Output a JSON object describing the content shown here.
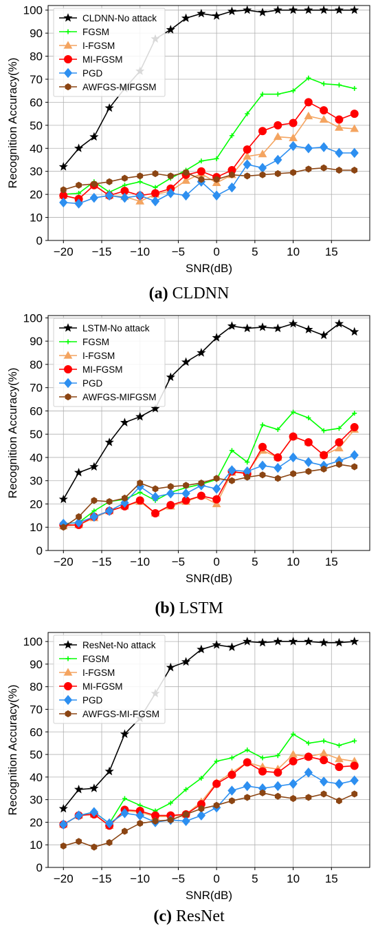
{
  "figure": {
    "panels": [
      {
        "caption_letter": "(a)",
        "caption_text": "CLDNN"
      },
      {
        "caption_letter": "(b)",
        "caption_text": "LSTM"
      },
      {
        "caption_letter": "(c)",
        "caption_text": "ResNet"
      }
    ]
  },
  "chart_data": [
    {
      "type": "line",
      "xlabel": "SNR(dB)",
      "ylabel": "Recognition Accuracy(%)",
      "xlim": [
        -22,
        20
      ],
      "ylim": [
        0,
        102
      ],
      "xticks": [
        -20,
        -15,
        -10,
        -5,
        0,
        5,
        10,
        15
      ],
      "yticks": [
        0,
        10,
        20,
        30,
        40,
        50,
        60,
        70,
        80,
        90,
        100
      ],
      "grid": true,
      "legend_position": "top-left",
      "x": [
        -20,
        -18,
        -16,
        -14,
        -12,
        -10,
        -8,
        -6,
        -4,
        -2,
        0,
        2,
        4,
        6,
        8,
        10,
        12,
        14,
        16,
        18
      ],
      "series": [
        {
          "name": "CLDNN-No attack",
          "color": "#000000",
          "marker": "star",
          "values": [
            32,
            40,
            45,
            57.5,
            66,
            73.5,
            87.5,
            91.5,
            96.5,
            98.5,
            97.5,
            99.5,
            100,
            99,
            100,
            100,
            100,
            100,
            100,
            100
          ]
        },
        {
          "name": "FGSM",
          "color": "#00ff00",
          "marker": "plus",
          "values": [
            20,
            20.5,
            25.5,
            21,
            24,
            25.5,
            23,
            27,
            30.5,
            34.5,
            35.5,
            45.5,
            55,
            63.5,
            63.5,
            65,
            70.5,
            68,
            67.5,
            66
          ]
        },
        {
          "name": "I-FGSM",
          "color": "#f4a460",
          "marker": "triangle",
          "values": [
            19.5,
            18,
            24,
            19.5,
            19,
            17,
            20,
            21.5,
            26,
            29,
            25,
            28.5,
            36.5,
            37.5,
            45,
            44.5,
            54,
            52.5,
            49,
            48.5
          ]
        },
        {
          "name": "MI-FGSM",
          "color": "#ff0000",
          "marker": "circle",
          "values": [
            19.5,
            18,
            24,
            19.5,
            21.5,
            19.5,
            20.5,
            22.5,
            28.5,
            30,
            27.5,
            30.5,
            39.5,
            47.5,
            50,
            51,
            60,
            56.5,
            52.5,
            55
          ]
        },
        {
          "name": "PGD",
          "color": "#2d8ff0",
          "marker": "diamond",
          "values": [
            16.5,
            16,
            18.5,
            19.5,
            18.5,
            19.5,
            17,
            20.5,
            19.5,
            25.5,
            19.5,
            23,
            33,
            31.5,
            35,
            41,
            40,
            40.5,
            38,
            38
          ]
        },
        {
          "name": "AWFGS-MIFGSM",
          "color": "#8b4513",
          "marker": "hexagon",
          "values": [
            22,
            24,
            24.5,
            25.5,
            27,
            28,
            29,
            28,
            29.5,
            26.5,
            26.5,
            28.5,
            28,
            28.5,
            29,
            29.5,
            31,
            31.5,
            30.5,
            30.5
          ]
        }
      ]
    },
    {
      "type": "line",
      "xlabel": "SNR(dB)",
      "ylabel": "Recognition Accuracy(%)",
      "xlim": [
        -22,
        20
      ],
      "ylim": [
        0,
        101
      ],
      "xticks": [
        -20,
        -15,
        -10,
        -5,
        0,
        5,
        10,
        15
      ],
      "yticks": [
        0,
        10,
        20,
        30,
        40,
        50,
        60,
        70,
        80,
        90,
        100
      ],
      "grid": true,
      "legend_position": "top-left",
      "x": [
        -20,
        -18,
        -16,
        -14,
        -12,
        -10,
        -8,
        -6,
        -4,
        -2,
        0,
        2,
        4,
        6,
        8,
        10,
        12,
        14,
        16,
        18
      ],
      "series": [
        {
          "name": "LSTM-No attack",
          "color": "#000000",
          "marker": "star",
          "values": [
            22,
            33.5,
            36,
            46.5,
            55,
            57.5,
            61,
            74.5,
            81,
            85,
            91.5,
            96.5,
            95.5,
            96,
            95.5,
            97.5,
            95,
            92.5,
            97.5,
            94
          ]
        },
        {
          "name": "FGSM",
          "color": "#00ff00",
          "marker": "plus",
          "values": [
            11.5,
            12,
            17,
            21,
            22,
            25,
            21.5,
            25,
            27,
            28.5,
            30.5,
            43,
            38,
            54,
            52,
            59.5,
            57,
            51.5,
            52.5,
            59
          ]
        },
        {
          "name": "I-FGSM",
          "color": "#f4a460",
          "marker": "triangle",
          "values": [
            10.5,
            11,
            14,
            17,
            19,
            21,
            16,
            19,
            21,
            23.5,
            20,
            33.5,
            33.5,
            43,
            40,
            49,
            46.5,
            41,
            44,
            52
          ]
        },
        {
          "name": "MI-FGSM",
          "color": "#ff0000",
          "marker": "circle",
          "values": [
            11,
            11,
            14.5,
            17,
            19,
            21.5,
            16,
            19.5,
            21.5,
            23.5,
            22,
            34,
            33,
            44.5,
            40,
            49,
            46.5,
            41,
            46.5,
            53
          ]
        },
        {
          "name": "PGD",
          "color": "#2d8ff0",
          "marker": "diamond",
          "values": [
            11.5,
            12,
            14.5,
            17,
            20.5,
            27.5,
            23,
            24.5,
            24.5,
            28,
            26.5,
            34.5,
            34,
            36.5,
            35.5,
            40,
            38,
            36.5,
            38.5,
            41
          ]
        },
        {
          "name": "AWFGS-MIFGSM",
          "color": "#8b4513",
          "marker": "hexagon",
          "values": [
            10,
            14.5,
            21.5,
            21,
            22.5,
            29,
            26.5,
            27.5,
            28,
            29,
            31,
            30,
            31.5,
            32.5,
            31,
            33,
            34,
            35,
            37,
            36
          ]
        }
      ]
    },
    {
      "type": "line",
      "xlabel": "SNR(dB)",
      "ylabel": "Recognition Accuracy(%)",
      "xlim": [
        -22,
        20
      ],
      "ylim": [
        0,
        104
      ],
      "xticks": [
        -20,
        -15,
        -10,
        -5,
        0,
        5,
        10,
        15
      ],
      "yticks": [
        0,
        10,
        20,
        30,
        40,
        50,
        60,
        70,
        80,
        90,
        100
      ],
      "grid": true,
      "legend_position": "top-left",
      "x": [
        -20,
        -18,
        -16,
        -14,
        -12,
        -10,
        -8,
        -6,
        -4,
        -2,
        0,
        2,
        4,
        6,
        8,
        10,
        12,
        14,
        16,
        18
      ],
      "series": [
        {
          "name": "ResNet-No attack",
          "color": "#000000",
          "marker": "star",
          "values": [
            26,
            34.5,
            35,
            42.5,
            59,
            66,
            77,
            88.5,
            91,
            96.5,
            98.5,
            97.5,
            100,
            99.5,
            100,
            100,
            100,
            99.5,
            99.5,
            100
          ]
        },
        {
          "name": "FGSM",
          "color": "#00ff00",
          "marker": "plus",
          "values": [
            19,
            23,
            24.5,
            19.5,
            30.5,
            27.5,
            25,
            28.5,
            34.5,
            39.5,
            47,
            48.5,
            52,
            48.5,
            49.5,
            59,
            55,
            56,
            54,
            56
          ]
        },
        {
          "name": "I-FGSM",
          "color": "#f4a460",
          "marker": "triangle",
          "values": [
            19,
            23,
            23.5,
            18.5,
            25,
            24.5,
            22.5,
            22.5,
            23.5,
            29,
            37.5,
            42,
            46.5,
            44.5,
            43.5,
            50,
            49,
            50.5,
            48,
            47
          ]
        },
        {
          "name": "MI-FGSM",
          "color": "#ff0000",
          "marker": "circle",
          "values": [
            19,
            23,
            23.5,
            18.5,
            25.5,
            25,
            23,
            23,
            23.5,
            28,
            37,
            41,
            46.5,
            42.5,
            42,
            47,
            49,
            47.5,
            44.5,
            45
          ]
        },
        {
          "name": "PGD",
          "color": "#2d8ff0",
          "marker": "diamond",
          "values": [
            19,
            23,
            24.5,
            19.5,
            24,
            23,
            20,
            21,
            20.5,
            23,
            26.5,
            34,
            36,
            35,
            36,
            37,
            42,
            38,
            37,
            38.5
          ]
        },
        {
          "name": "AWFGS-MI-FGSM",
          "color": "#8b4513",
          "marker": "hexagon",
          "values": [
            9.5,
            11.5,
            9,
            11,
            16,
            19.5,
            20.5,
            21,
            23.5,
            26,
            27.5,
            29.5,
            31,
            33,
            31.5,
            30.5,
            31,
            32.5,
            29.5,
            32.5
          ]
        }
      ]
    }
  ]
}
